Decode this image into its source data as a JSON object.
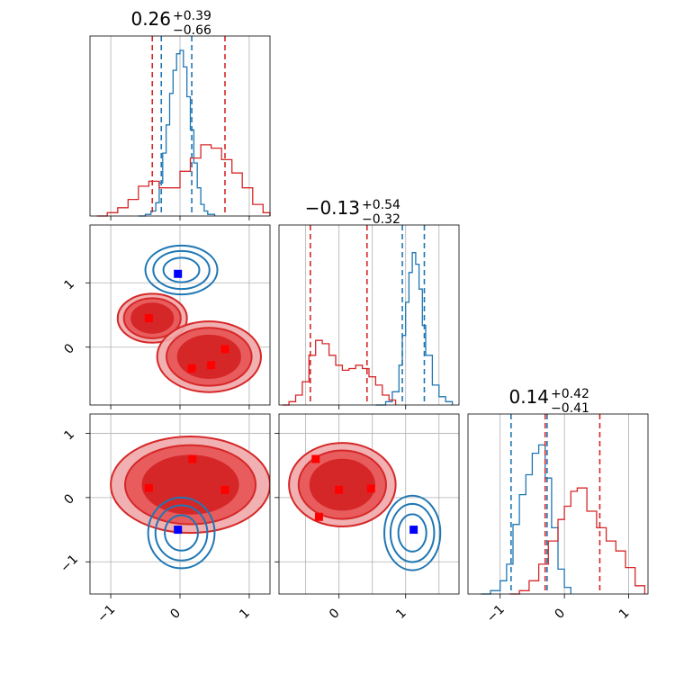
{
  "chart_data": {
    "type": "corner",
    "colors": {
      "blue": "#1f77b4",
      "red": "#d62728",
      "blue_marker": "#0000ff",
      "red_marker": "#ff0000"
    },
    "diagonal": [
      {
        "title": {
          "median": "0.26",
          "plus": "+0.39",
          "minus": "−0.66"
        },
        "xlim": [
          -1.3,
          1.3
        ],
        "series": [
          {
            "name": "blue",
            "x": [
              -0.6,
              -0.5,
              -0.42,
              -0.35,
              -0.3,
              -0.25,
              -0.2,
              -0.15,
              -0.1,
              -0.05,
              0.0,
              0.05,
              0.1,
              0.15,
              0.2,
              0.25,
              0.3,
              0.35,
              0.4,
              0.5
            ],
            "y": [
              0.0,
              0.01,
              0.03,
              0.08,
              0.2,
              0.38,
              0.55,
              0.74,
              0.88,
              0.98,
              1.0,
              0.9,
              0.72,
              0.52,
              0.32,
              0.17,
              0.07,
              0.03,
              0.01,
              0.0
            ],
            "quantiles": [
              -0.27,
              0.17
            ]
          },
          {
            "name": "red",
            "x": [
              -1.2,
              -1.05,
              -0.9,
              -0.75,
              -0.6,
              -0.45,
              -0.3,
              -0.15,
              0.0,
              0.15,
              0.3,
              0.45,
              0.6,
              0.75,
              0.9,
              1.05,
              1.2,
              1.3
            ],
            "y": [
              0.0,
              0.02,
              0.05,
              0.1,
              0.18,
              0.21,
              0.17,
              0.17,
              0.27,
              0.35,
              0.43,
              0.41,
              0.34,
              0.26,
              0.17,
              0.07,
              0.02,
              0.0
            ],
            "quantiles": [
              -0.4,
              0.65
            ]
          }
        ]
      },
      {
        "title": {
          "median": "−0.13",
          "plus": "+0.54",
          "minus": "−0.32"
        },
        "xlim": [
          -0.9,
          1.8
        ],
        "series": [
          {
            "name": "blue",
            "x": [
              0.55,
              0.7,
              0.8,
              0.9,
              0.95,
              1.0,
              1.05,
              1.1,
              1.15,
              1.2,
              1.25,
              1.3,
              1.4,
              1.5,
              1.6,
              1.7
            ],
            "y": [
              0.0,
              0.02,
              0.08,
              0.24,
              0.42,
              0.62,
              0.8,
              0.92,
              0.85,
              0.7,
              0.48,
              0.3,
              0.12,
              0.05,
              0.02,
              0.0
            ],
            "quantiles": [
              0.95,
              1.28
            ]
          },
          {
            "name": "red",
            "x": [
              -0.85,
              -0.75,
              -0.65,
              -0.55,
              -0.45,
              -0.35,
              -0.25,
              -0.15,
              -0.05,
              0.05,
              0.15,
              0.25,
              0.35,
              0.45,
              0.55,
              0.65,
              0.75,
              0.85
            ],
            "y": [
              0.0,
              0.02,
              0.06,
              0.14,
              0.3,
              0.39,
              0.37,
              0.3,
              0.24,
              0.21,
              0.22,
              0.24,
              0.22,
              0.17,
              0.12,
              0.06,
              0.03,
              0.0
            ],
            "quantiles": [
              -0.43,
              0.42
            ]
          }
        ]
      },
      {
        "title": {
          "median": "0.14",
          "plus": "+0.42",
          "minus": "−0.41"
        },
        "xlim": [
          -1.5,
          1.3
        ],
        "series": [
          {
            "name": "blue",
            "x": [
              -1.3,
              -1.15,
              -1.0,
              -0.9,
              -0.8,
              -0.7,
              -0.6,
              -0.5,
              -0.4,
              -0.3,
              -0.2,
              -0.1,
              0.0,
              0.1
            ],
            "y": [
              0.0,
              0.02,
              0.08,
              0.18,
              0.42,
              0.6,
              0.72,
              0.85,
              0.9,
              0.7,
              0.4,
              0.15,
              0.04,
              0.0
            ],
            "quantiles": [
              -0.83,
              -0.27
            ]
          },
          {
            "name": "red",
            "x": [
              -0.85,
              -0.7,
              -0.55,
              -0.4,
              -0.25,
              -0.1,
              0.0,
              0.1,
              0.2,
              0.35,
              0.5,
              0.65,
              0.8,
              0.95,
              1.1,
              1.25
            ],
            "y": [
              0.0,
              0.02,
              0.08,
              0.18,
              0.32,
              0.45,
              0.53,
              0.62,
              0.64,
              0.5,
              0.4,
              0.32,
              0.26,
              0.16,
              0.05,
              0.0
            ],
            "quantiles": [
              -0.3,
              0.55
            ]
          }
        ]
      }
    ],
    "offdiagonal": [
      {
        "row": 1,
        "col": 0,
        "xlim": [
          -1.3,
          1.3
        ],
        "ylim": [
          -0.9,
          1.9
        ],
        "red_markers": [
          [
            -0.45,
            0.45
          ],
          [
            0.17,
            -0.33
          ],
          [
            0.45,
            -0.28
          ],
          [
            0.65,
            -0.03
          ]
        ],
        "blue_markers": [
          [
            -0.03,
            1.14
          ]
        ],
        "red_blobs": [
          [
            -0.4,
            0.45,
            0.5,
            0.38
          ],
          [
            0.42,
            -0.15,
            0.75,
            0.55
          ]
        ],
        "blue_blobs": [
          [
            0.02,
            1.2,
            0.52,
            0.38
          ]
        ]
      },
      {
        "row": 2,
        "col": 0,
        "xlim": [
          -1.3,
          1.3
        ],
        "ylim": [
          -1.5,
          1.3
        ],
        "red_markers": [
          [
            -0.45,
            0.15
          ],
          [
            0.18,
            0.6
          ],
          [
            0.65,
            0.12
          ]
        ],
        "blue_markers": [
          [
            -0.03,
            -0.5
          ]
        ],
        "red_blobs": [
          [
            0.15,
            0.2,
            1.15,
            0.75
          ]
        ],
        "blue_blobs": [
          [
            0.02,
            -0.55,
            0.48,
            0.55
          ]
        ]
      },
      {
        "row": 2,
        "col": 1,
        "xlim": [
          -0.9,
          1.8
        ],
        "ylim": [
          -1.5,
          1.3
        ],
        "red_markers": [
          [
            -0.35,
            0.6
          ],
          [
            0.0,
            0.12
          ],
          [
            0.48,
            0.14
          ],
          [
            -0.3,
            -0.3
          ]
        ],
        "blue_markers": [
          [
            1.12,
            -0.5
          ]
        ],
        "red_blobs": [
          [
            0.05,
            0.2,
            0.8,
            0.65
          ]
        ],
        "blue_blobs": [
          [
            1.1,
            -0.55,
            0.42,
            0.58
          ]
        ]
      }
    ],
    "ticks": {
      "row1_y": [
        "1",
        "0"
      ],
      "row2_y": [
        "1",
        "0",
        "−1"
      ],
      "col0_x": [
        "−1",
        "0",
        "1"
      ],
      "col1_x": [
        "0",
        "1"
      ],
      "col2_x": [
        "−1",
        "0",
        "1"
      ]
    }
  }
}
